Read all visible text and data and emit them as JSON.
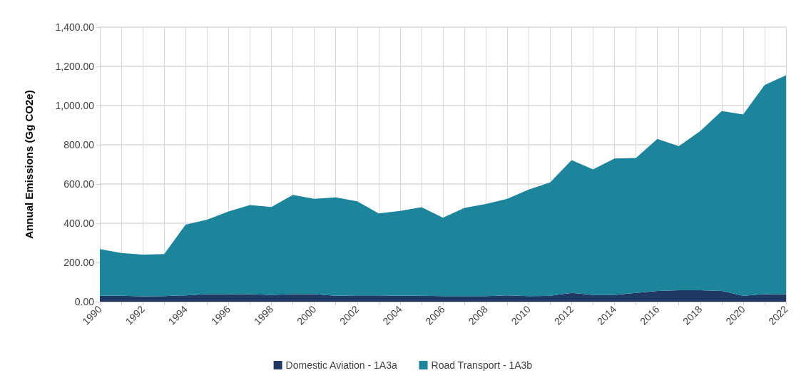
{
  "chart_data": {
    "type": "area",
    "ylabel": "Annual Emissions (Gg CO2e)",
    "categories": [
      "1990",
      null,
      "1992",
      null,
      "1994",
      null,
      "1996",
      null,
      "1998",
      null,
      "2000",
      null,
      "2002",
      null,
      "2004",
      null,
      "2006",
      null,
      "2008",
      null,
      "2010",
      null,
      "2012",
      null,
      "2014",
      null,
      "2016",
      null,
      "2018",
      null,
      "2020",
      null,
      "2022"
    ],
    "stacked": true,
    "series": [
      {
        "name": "Domestic Aviation - 1A3a",
        "color": "#203864",
        "values": [
          30,
          30,
          27,
          28,
          32,
          38,
          38,
          38,
          35,
          38,
          38,
          30,
          32,
          32,
          30,
          30,
          28,
          28,
          28,
          32,
          28,
          30,
          45,
          35,
          35,
          45,
          55,
          58,
          58,
          55,
          30,
          38,
          38
        ]
      },
      {
        "name": "Road Transport - 1A3b",
        "color": "#1c859b",
        "values": [
          238,
          218,
          213,
          215,
          361,
          380,
          422,
          455,
          448,
          507,
          487,
          502,
          480,
          418,
          433,
          452,
          400,
          450,
          470,
          493,
          544,
          578,
          677,
          640,
          695,
          688,
          775,
          735,
          812,
          917,
          925,
          1067,
          1117
        ]
      }
    ],
    "ylim": [
      0,
      1400
    ],
    "yticks": [
      {
        "value": 0,
        "label": "0.00"
      },
      {
        "value": 200,
        "label": "200.00"
      },
      {
        "value": 400,
        "label": "400.00"
      },
      {
        "value": 600,
        "label": "600.00"
      },
      {
        "value": 800,
        "label": "800.00"
      },
      {
        "value": 1000,
        "label": "1,000.00"
      },
      {
        "value": 1200,
        "label": "1,200.00"
      },
      {
        "value": 1400,
        "label": "1,400.00"
      }
    ],
    "grid": true,
    "legend": "bottom"
  }
}
